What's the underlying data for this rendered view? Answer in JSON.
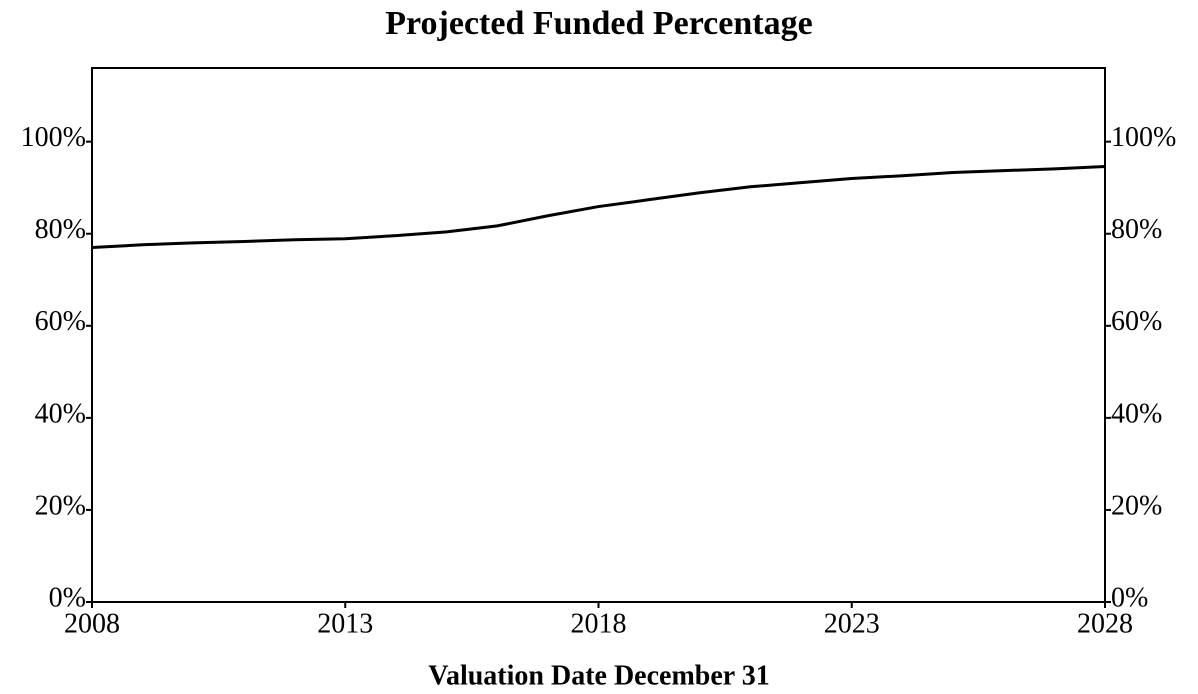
{
  "chart_data": {
    "type": "line",
    "title": "Projected Funded Percentage",
    "x_label": "Valuation Date December 31",
    "x": [
      2008,
      2009,
      2010,
      2011,
      2012,
      2013,
      2014,
      2015,
      2016,
      2017,
      2018,
      2019,
      2020,
      2021,
      2022,
      2023,
      2024,
      2025,
      2026,
      2027,
      2028
    ],
    "series": [
      {
        "color": "#000000",
        "values": [
          77.0,
          77.6,
          78.0,
          78.3,
          78.7,
          78.9,
          79.6,
          80.4,
          81.7,
          83.9,
          85.9,
          87.4,
          88.9,
          90.2,
          91.1,
          92.0,
          92.6,
          93.3,
          93.7,
          94.1,
          94.6
        ]
      }
    ],
    "xlim": [
      2008,
      2028
    ],
    "xticks": [
      2008,
      2013,
      2018,
      2023,
      2028
    ],
    "ylim": [
      0,
      116
    ],
    "yticks": [
      {
        "value": 0,
        "label": "0%"
      },
      {
        "value": 20,
        "label": "20%"
      },
      {
        "value": 40,
        "label": "40%"
      },
      {
        "value": 60,
        "label": "60%"
      },
      {
        "value": 80,
        "label": "80%"
      },
      {
        "value": 100,
        "label": "100%"
      }
    ],
    "y2lim": [
      0,
      116
    ],
    "y2ticks": [
      {
        "value": 0,
        "label": "0%"
      },
      {
        "value": 20,
        "label": "20%"
      },
      {
        "value": 40,
        "label": "40%"
      },
      {
        "value": 60,
        "label": "60%"
      },
      {
        "value": 80,
        "label": "80%"
      },
      {
        "value": 100,
        "label": "100%"
      }
    ],
    "grid": false
  }
}
